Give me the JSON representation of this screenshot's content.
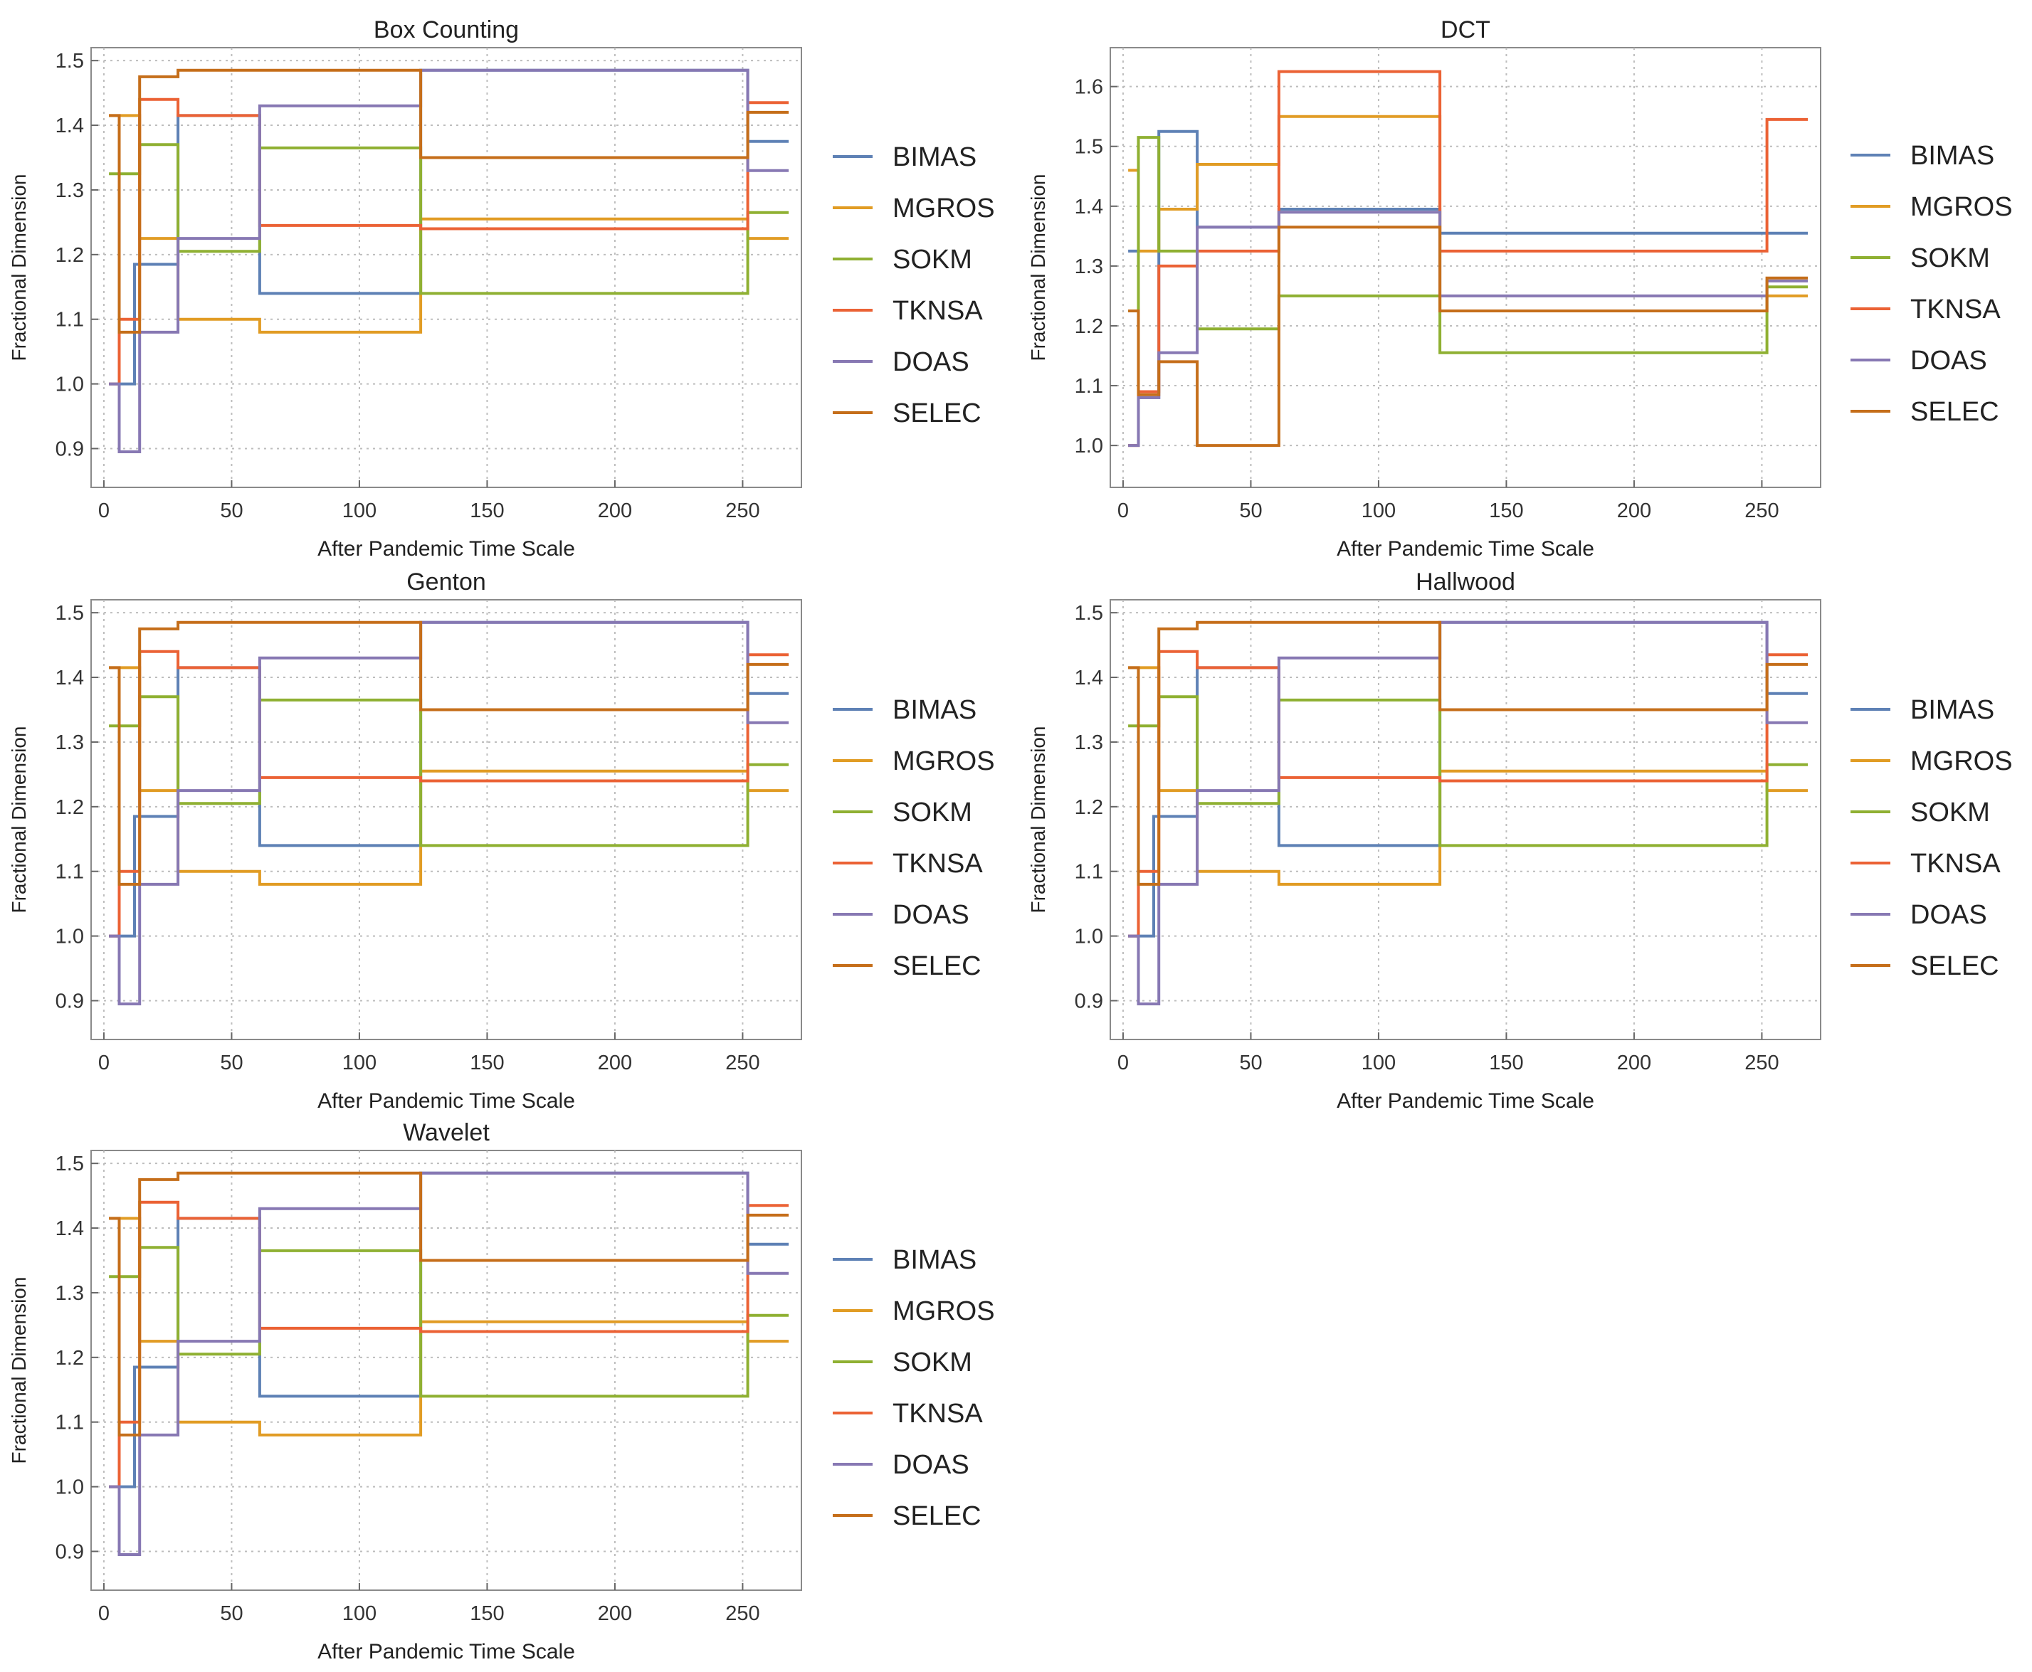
{
  "x_ticks": [
    0,
    50,
    100,
    150,
    200,
    250
  ],
  "xlabel": "After Pandemic Time Scale",
  "ylabel": "Fractional Dimension",
  "series_names": [
    "BIMAS",
    "MGROS",
    "SOKM",
    "TKNSA",
    "DOAS",
    "SELEC"
  ],
  "colors": {
    "BIMAS": "#5e81b5",
    "MGROS": "#e19c24",
    "SOKM": "#8fb032",
    "TKNSA": "#eb6235",
    "DOAS": "#8778b3",
    "SELEC": "#c56e1a"
  },
  "chart_data": [
    {
      "type": "line",
      "title": "Box Counting",
      "xlabel": "After Pandemic Time Scale",
      "ylabel": "Fractional Dimension",
      "xlim": [
        -5,
        273
      ],
      "ylim": [
        0.84,
        1.52
      ],
      "yticks": [
        0.9,
        1.0,
        1.1,
        1.2,
        1.3,
        1.4,
        1.5
      ],
      "grid": true,
      "legend": "right",
      "series": [
        {
          "name": "BIMAS",
          "step": [
            [
              2,
              1.0
            ],
            [
              12,
              1.185
            ],
            [
              29,
              1.415
            ],
            [
              61,
              1.14
            ],
            [
              124,
              1.485
            ],
            [
              252,
              1.375
            ],
            [
              268,
              1.375
            ]
          ]
        },
        {
          "name": "MGROS",
          "step": [
            [
              2,
              1.415
            ],
            [
              14,
              1.225
            ],
            [
              29,
              1.1
            ],
            [
              61,
              1.08
            ],
            [
              124,
              1.255
            ],
            [
              252,
              1.225
            ],
            [
              268,
              1.225
            ]
          ]
        },
        {
          "name": "SOKM",
          "step": [
            [
              2,
              1.325
            ],
            [
              14,
              1.37
            ],
            [
              29,
              1.205
            ],
            [
              61,
              1.365
            ],
            [
              124,
              1.14
            ],
            [
              252,
              1.265
            ],
            [
              268,
              1.265
            ]
          ]
        },
        {
          "name": "TKNSA",
          "step": [
            [
              2,
              1.0
            ],
            [
              6,
              1.1
            ],
            [
              14,
              1.44
            ],
            [
              29,
              1.415
            ],
            [
              61,
              1.245
            ],
            [
              124,
              1.24
            ],
            [
              252,
              1.435
            ],
            [
              268,
              1.435
            ]
          ]
        },
        {
          "name": "DOAS",
          "step": [
            [
              2,
              1.0
            ],
            [
              6,
              0.895
            ],
            [
              14,
              1.08
            ],
            [
              29,
              1.225
            ],
            [
              61,
              1.43
            ],
            [
              124,
              1.485
            ],
            [
              252,
              1.33
            ],
            [
              268,
              1.33
            ]
          ]
        },
        {
          "name": "SELEC",
          "step": [
            [
              2,
              1.415
            ],
            [
              6,
              1.08
            ],
            [
              14,
              1.475
            ],
            [
              29,
              1.485
            ],
            [
              124,
              1.35
            ],
            [
              252,
              1.42
            ],
            [
              268,
              1.42
            ]
          ]
        }
      ]
    },
    {
      "type": "line",
      "title": "DCT",
      "xlabel": "After Pandemic Time Scale",
      "ylabel": "Fractional Dimension",
      "xlim": [
        -5,
        273
      ],
      "ylim": [
        0.93,
        1.665
      ],
      "yticks": [
        1.0,
        1.1,
        1.2,
        1.3,
        1.4,
        1.5,
        1.6
      ],
      "grid": true,
      "legend": "right",
      "series": [
        {
          "name": "BIMAS",
          "step": [
            [
              2,
              1.325
            ],
            [
              6,
              1.08
            ],
            [
              14,
              1.525
            ],
            [
              29,
              1.365
            ],
            [
              61,
              1.395
            ],
            [
              124,
              1.355
            ],
            [
              268,
              1.355
            ]
          ]
        },
        {
          "name": "MGROS",
          "step": [
            [
              2,
              1.46
            ],
            [
              6,
              1.325
            ],
            [
              14,
              1.395
            ],
            [
              29,
              1.47
            ],
            [
              61,
              1.55
            ],
            [
              124,
              1.225
            ],
            [
              252,
              1.25
            ],
            [
              268,
              1.25
            ]
          ]
        },
        {
          "name": "SOKM",
          "step": [
            [
              2,
              1.225
            ],
            [
              6,
              1.515
            ],
            [
              14,
              1.325
            ],
            [
              29,
              1.195
            ],
            [
              61,
              1.25
            ],
            [
              124,
              1.155
            ],
            [
              252,
              1.265
            ],
            [
              268,
              1.265
            ]
          ]
        },
        {
          "name": "TKNSA",
          "step": [
            [
              2,
              1.0
            ],
            [
              6,
              1.09
            ],
            [
              14,
              1.3
            ],
            [
              29,
              1.325
            ],
            [
              61,
              1.625
            ],
            [
              124,
              1.325
            ],
            [
              252,
              1.545
            ],
            [
              268,
              1.545
            ]
          ]
        },
        {
          "name": "DOAS",
          "step": [
            [
              2,
              1.0
            ],
            [
              6,
              1.08
            ],
            [
              14,
              1.155
            ],
            [
              29,
              1.365
            ],
            [
              61,
              1.39
            ],
            [
              124,
              1.25
            ],
            [
              252,
              1.275
            ],
            [
              268,
              1.275
            ]
          ]
        },
        {
          "name": "SELEC",
          "step": [
            [
              2,
              1.225
            ],
            [
              6,
              1.085
            ],
            [
              14,
              1.14
            ],
            [
              29,
              1.0
            ],
            [
              61,
              1.365
            ],
            [
              124,
              1.225
            ],
            [
              252,
              1.28
            ],
            [
              268,
              1.28
            ]
          ]
        }
      ]
    },
    {
      "type": "line",
      "title": "Genton",
      "xlabel": "After Pandemic Time Scale",
      "ylabel": "Fractional Dimension",
      "xlim": [
        -5,
        273
      ],
      "ylim": [
        0.84,
        1.52
      ],
      "yticks": [
        0.9,
        1.0,
        1.1,
        1.2,
        1.3,
        1.4,
        1.5
      ],
      "grid": true,
      "legend": "right",
      "series": [
        {
          "name": "BIMAS",
          "step": [
            [
              2,
              1.0
            ],
            [
              12,
              1.185
            ],
            [
              29,
              1.415
            ],
            [
              61,
              1.14
            ],
            [
              124,
              1.485
            ],
            [
              252,
              1.375
            ],
            [
              268,
              1.375
            ]
          ]
        },
        {
          "name": "MGROS",
          "step": [
            [
              2,
              1.415
            ],
            [
              14,
              1.225
            ],
            [
              29,
              1.1
            ],
            [
              61,
              1.08
            ],
            [
              124,
              1.255
            ],
            [
              252,
              1.225
            ],
            [
              268,
              1.225
            ]
          ]
        },
        {
          "name": "SOKM",
          "step": [
            [
              2,
              1.325
            ],
            [
              14,
              1.37
            ],
            [
              29,
              1.205
            ],
            [
              61,
              1.365
            ],
            [
              124,
              1.14
            ],
            [
              252,
              1.265
            ],
            [
              268,
              1.265
            ]
          ]
        },
        {
          "name": "TKNSA",
          "step": [
            [
              2,
              1.0
            ],
            [
              6,
              1.1
            ],
            [
              14,
              1.44
            ],
            [
              29,
              1.415
            ],
            [
              61,
              1.245
            ],
            [
              124,
              1.24
            ],
            [
              252,
              1.435
            ],
            [
              268,
              1.435
            ]
          ]
        },
        {
          "name": "DOAS",
          "step": [
            [
              2,
              1.0
            ],
            [
              6,
              0.895
            ],
            [
              14,
              1.08
            ],
            [
              29,
              1.225
            ],
            [
              61,
              1.43
            ],
            [
              124,
              1.485
            ],
            [
              252,
              1.33
            ],
            [
              268,
              1.33
            ]
          ]
        },
        {
          "name": "SELEC",
          "step": [
            [
              2,
              1.415
            ],
            [
              6,
              1.08
            ],
            [
              14,
              1.475
            ],
            [
              29,
              1.485
            ],
            [
              124,
              1.35
            ],
            [
              252,
              1.42
            ],
            [
              268,
              1.42
            ]
          ]
        }
      ]
    },
    {
      "type": "line",
      "title": "Hallwood",
      "xlabel": "After Pandemic Time Scale",
      "ylabel": "Fractional Dimension",
      "xlim": [
        -5,
        273
      ],
      "ylim": [
        0.84,
        1.52
      ],
      "yticks": [
        0.9,
        1.0,
        1.1,
        1.2,
        1.3,
        1.4,
        1.5
      ],
      "grid": true,
      "legend": "right",
      "series": [
        {
          "name": "BIMAS",
          "step": [
            [
              2,
              1.0
            ],
            [
              12,
              1.185
            ],
            [
              29,
              1.415
            ],
            [
              61,
              1.14
            ],
            [
              124,
              1.485
            ],
            [
              252,
              1.375
            ],
            [
              268,
              1.375
            ]
          ]
        },
        {
          "name": "MGROS",
          "step": [
            [
              2,
              1.415
            ],
            [
              14,
              1.225
            ],
            [
              29,
              1.1
            ],
            [
              61,
              1.08
            ],
            [
              124,
              1.255
            ],
            [
              252,
              1.225
            ],
            [
              268,
              1.225
            ]
          ]
        },
        {
          "name": "SOKM",
          "step": [
            [
              2,
              1.325
            ],
            [
              14,
              1.37
            ],
            [
              29,
              1.205
            ],
            [
              61,
              1.365
            ],
            [
              124,
              1.14
            ],
            [
              252,
              1.265
            ],
            [
              268,
              1.265
            ]
          ]
        },
        {
          "name": "TKNSA",
          "step": [
            [
              2,
              1.0
            ],
            [
              6,
              1.1
            ],
            [
              14,
              1.44
            ],
            [
              29,
              1.415
            ],
            [
              61,
              1.245
            ],
            [
              124,
              1.24
            ],
            [
              252,
              1.435
            ],
            [
              268,
              1.435
            ]
          ]
        },
        {
          "name": "DOAS",
          "step": [
            [
              2,
              1.0
            ],
            [
              6,
              0.895
            ],
            [
              14,
              1.08
            ],
            [
              29,
              1.225
            ],
            [
              61,
              1.43
            ],
            [
              124,
              1.485
            ],
            [
              252,
              1.33
            ],
            [
              268,
              1.33
            ]
          ]
        },
        {
          "name": "SELEC",
          "step": [
            [
              2,
              1.415
            ],
            [
              6,
              1.08
            ],
            [
              14,
              1.475
            ],
            [
              29,
              1.485
            ],
            [
              124,
              1.35
            ],
            [
              252,
              1.42
            ],
            [
              268,
              1.42
            ]
          ]
        }
      ]
    },
    {
      "type": "line",
      "title": "Wavelet",
      "xlabel": "After Pandemic Time Scale",
      "ylabel": "Fractional Dimension",
      "xlim": [
        -5,
        273
      ],
      "ylim": [
        0.84,
        1.52
      ],
      "yticks": [
        0.9,
        1.0,
        1.1,
        1.2,
        1.3,
        1.4,
        1.5
      ],
      "grid": true,
      "legend": "right",
      "series": [
        {
          "name": "BIMAS",
          "step": [
            [
              2,
              1.0
            ],
            [
              12,
              1.185
            ],
            [
              29,
              1.415
            ],
            [
              61,
              1.14
            ],
            [
              124,
              1.485
            ],
            [
              252,
              1.375
            ],
            [
              268,
              1.375
            ]
          ]
        },
        {
          "name": "MGROS",
          "step": [
            [
              2,
              1.415
            ],
            [
              14,
              1.225
            ],
            [
              29,
              1.1
            ],
            [
              61,
              1.08
            ],
            [
              124,
              1.255
            ],
            [
              252,
              1.225
            ],
            [
              268,
              1.225
            ]
          ]
        },
        {
          "name": "SOKM",
          "step": [
            [
              2,
              1.325
            ],
            [
              14,
              1.37
            ],
            [
              29,
              1.205
            ],
            [
              61,
              1.365
            ],
            [
              124,
              1.14
            ],
            [
              252,
              1.265
            ],
            [
              268,
              1.265
            ]
          ]
        },
        {
          "name": "TKNSA",
          "step": [
            [
              2,
              1.0
            ],
            [
              6,
              1.1
            ],
            [
              14,
              1.44
            ],
            [
              29,
              1.415
            ],
            [
              61,
              1.245
            ],
            [
              124,
              1.24
            ],
            [
              252,
              1.435
            ],
            [
              268,
              1.435
            ]
          ]
        },
        {
          "name": "DOAS",
          "step": [
            [
              2,
              1.0
            ],
            [
              6,
              0.895
            ],
            [
              14,
              1.08
            ],
            [
              29,
              1.225
            ],
            [
              61,
              1.43
            ],
            [
              124,
              1.485
            ],
            [
              252,
              1.33
            ],
            [
              268,
              1.33
            ]
          ]
        },
        {
          "name": "SELEC",
          "step": [
            [
              2,
              1.415
            ],
            [
              6,
              1.08
            ],
            [
              14,
              1.475
            ],
            [
              29,
              1.485
            ],
            [
              124,
              1.35
            ],
            [
              252,
              1.42
            ],
            [
              268,
              1.42
            ]
          ]
        }
      ]
    }
  ]
}
